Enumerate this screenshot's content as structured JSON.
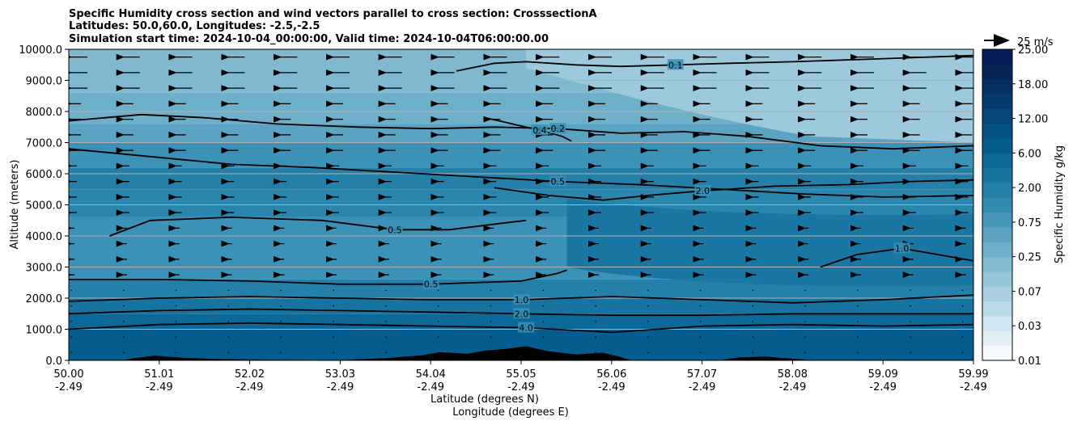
{
  "chart_data": {
    "type": "contour",
    "title": [
      "Specific Humidity cross section and wind vectors parallel to cross section: CrosssectionA",
      "Latitudes: 50.0,60.0, Longitudes: -2.5,-2.5",
      "Simulation start time: 2024-10-04_00:00:00, Valid time: 2024-10-04T06:00:00.00"
    ],
    "ylabel": "Altitude (meters)",
    "xlabel_lat": "Latitude (degrees N)",
    "xlabel_lon": "Longitude (degrees E)",
    "ylim": [
      0,
      10000
    ],
    "yticks": [
      "0.0",
      "1000.0",
      "2000.0",
      "3000.0",
      "4000.0",
      "5000.0",
      "6000.0",
      "7000.0",
      "8000.0",
      "9000.0",
      "10000.0"
    ],
    "xlim": [
      50.0,
      59.99
    ],
    "xticks_lat": [
      "50.00",
      "51.01",
      "52.02",
      "53.03",
      "54.04",
      "55.05",
      "56.06",
      "57.07",
      "58.08",
      "59.09",
      "59.99"
    ],
    "xticks_lon": [
      "-2.49",
      "-2.49",
      "-2.49",
      "-2.49",
      "-2.49",
      "-2.49",
      "-2.49",
      "-2.49",
      "-2.49",
      "-2.49",
      "-2.49"
    ],
    "grid": "horizontal",
    "colorbar": {
      "label": "Specific Humidity g/kg",
      "ticks": [
        "0.01",
        "0.03",
        "0.07",
        "0.25",
        "0.75",
        "2.00",
        "6.00",
        "12.00",
        "18.00",
        "25.00"
      ],
      "colors": [
        "#f7fbff",
        "#e2eff5",
        "#cfe5ef",
        "#bcdbe8",
        "#a9d0e1",
        "#96c6da",
        "#82bbd2",
        "#6eafca",
        "#5aa3c2",
        "#4797ba",
        "#348bb2",
        "#2580a9",
        "#1774a0",
        "#0b6898",
        "#045c8f",
        "#035185",
        "#04457a",
        "#053a6e",
        "#072f62",
        "#082556",
        "#081d58"
      ]
    },
    "wind_key": "25 m/s",
    "contour_labels": [
      "0.1",
      "0.2",
      "0.4",
      "0.5",
      "1.0",
      "2.0",
      "4.0"
    ],
    "series": [
      {
        "level": 0.1,
        "points": [
          [
            54.28,
            9300
          ],
          [
            54.7,
            9550
          ],
          [
            55.05,
            9600
          ],
          [
            55.6,
            9500
          ],
          [
            56.1,
            9450
          ],
          [
            56.7,
            9500
          ],
          [
            57.3,
            9550
          ],
          [
            58.0,
            9600
          ],
          [
            59.0,
            9700
          ],
          [
            59.99,
            9800
          ]
        ]
      },
      {
        "level": 0.2,
        "points": [
          [
            50.0,
            7700
          ],
          [
            50.8,
            7900
          ],
          [
            51.5,
            7800
          ],
          [
            52.3,
            7600
          ],
          [
            53.2,
            7500
          ],
          [
            54.0,
            7450
          ],
          [
            54.7,
            7500
          ],
          [
            55.4,
            7450
          ],
          [
            56.1,
            7300
          ],
          [
            56.8,
            7350
          ],
          [
            57.5,
            7200
          ],
          [
            58.3,
            6900
          ],
          [
            59.1,
            6800
          ],
          [
            59.99,
            6900
          ]
        ]
      },
      {
        "level": 0.4,
        "points": [
          [
            54.6,
            7800
          ],
          [
            54.9,
            7600
          ],
          [
            55.2,
            7400
          ],
          [
            55.45,
            7200
          ],
          [
            55.55,
            7050
          ]
        ]
      },
      {
        "level": 0.5,
        "points": [
          [
            50.0,
            6800
          ],
          [
            50.9,
            6550
          ],
          [
            51.8,
            6300
          ],
          [
            52.7,
            6200
          ],
          [
            53.6,
            6050
          ],
          [
            54.5,
            5900
          ],
          [
            55.4,
            5750
          ],
          [
            56.3,
            5650
          ],
          [
            57.2,
            5500
          ],
          [
            58.1,
            5350
          ],
          [
            59.0,
            5250
          ],
          [
            59.99,
            5300
          ]
        ]
      },
      {
        "level": 0.5,
        "points": [
          [
            50.45,
            4000
          ],
          [
            50.9,
            4500
          ],
          [
            51.8,
            4600
          ],
          [
            52.8,
            4500
          ],
          [
            53.6,
            4200
          ],
          [
            54.2,
            4200
          ],
          [
            54.9,
            4450
          ],
          [
            55.05,
            4500
          ]
        ]
      },
      {
        "level": 0.5,
        "points": [
          [
            50.0,
            2600
          ],
          [
            51.0,
            2600
          ],
          [
            52.0,
            2550
          ],
          [
            53.0,
            2450
          ],
          [
            54.0,
            2450
          ],
          [
            55.0,
            2550
          ],
          [
            55.4,
            2800
          ],
          [
            55.5,
            2900
          ]
        ]
      },
      {
        "level": 1.0,
        "points": [
          [
            50.0,
            1900
          ],
          [
            51.0,
            2000
          ],
          [
            52.0,
            2050
          ],
          [
            53.0,
            2000
          ],
          [
            54.0,
            1950
          ],
          [
            55.0,
            1950
          ],
          [
            56.0,
            2050
          ],
          [
            57.0,
            1950
          ],
          [
            58.0,
            1850
          ],
          [
            59.0,
            1950
          ],
          [
            59.99,
            2100
          ]
        ]
      },
      {
        "level": 1.0,
        "points": [
          [
            58.3,
            3000
          ],
          [
            58.7,
            3400
          ],
          [
            59.2,
            3600
          ],
          [
            59.6,
            3400
          ],
          [
            59.99,
            3200
          ]
        ]
      },
      {
        "level": 2.0,
        "points": [
          [
            50.0,
            1500
          ],
          [
            51.0,
            1600
          ],
          [
            52.0,
            1650
          ],
          [
            53.0,
            1600
          ],
          [
            54.0,
            1550
          ],
          [
            55.0,
            1500
          ],
          [
            56.0,
            1450
          ],
          [
            57.0,
            1450
          ],
          [
            58.0,
            1500
          ],
          [
            59.0,
            1500
          ],
          [
            59.99,
            1500
          ]
        ]
      },
      {
        "level": 2.0,
        "points": [
          [
            54.7,
            5550
          ],
          [
            55.3,
            5300
          ],
          [
            55.9,
            5150
          ],
          [
            56.4,
            5300
          ],
          [
            57.0,
            5450
          ],
          [
            57.8,
            5600
          ],
          [
            58.6,
            5650
          ],
          [
            59.3,
            5750
          ],
          [
            59.99,
            5800
          ]
        ]
      },
      {
        "level": 4.0,
        "points": [
          [
            50.0,
            1000
          ],
          [
            51.0,
            1150
          ],
          [
            52.0,
            1200
          ],
          [
            53.0,
            1150
          ],
          [
            54.0,
            1100
          ],
          [
            55.05,
            1050
          ],
          [
            56.0,
            900
          ],
          [
            57.0,
            1100
          ],
          [
            58.0,
            1150
          ],
          [
            59.0,
            1100
          ],
          [
            59.99,
            1150
          ]
        ]
      }
    ],
    "terrain": [
      [
        50.0,
        0
      ],
      [
        50.6,
        0
      ],
      [
        50.7,
        50
      ],
      [
        50.95,
        140
      ],
      [
        51.2,
        80
      ],
      [
        51.6,
        30
      ],
      [
        52.2,
        10
      ],
      [
        53.0,
        0
      ],
      [
        53.5,
        60
      ],
      [
        53.9,
        150
      ],
      [
        54.1,
        250
      ],
      [
        54.4,
        200
      ],
      [
        54.6,
        300
      ],
      [
        54.8,
        350
      ],
      [
        55.05,
        440
      ],
      [
        55.3,
        280
      ],
      [
        55.6,
        180
      ],
      [
        55.9,
        230
      ],
      [
        56.06,
        120
      ],
      [
        56.2,
        0
      ],
      [
        57.2,
        0
      ],
      [
        57.4,
        80
      ],
      [
        57.7,
        110
      ],
      [
        57.9,
        60
      ],
      [
        58.2,
        0
      ],
      [
        59.99,
        0
      ]
    ]
  }
}
